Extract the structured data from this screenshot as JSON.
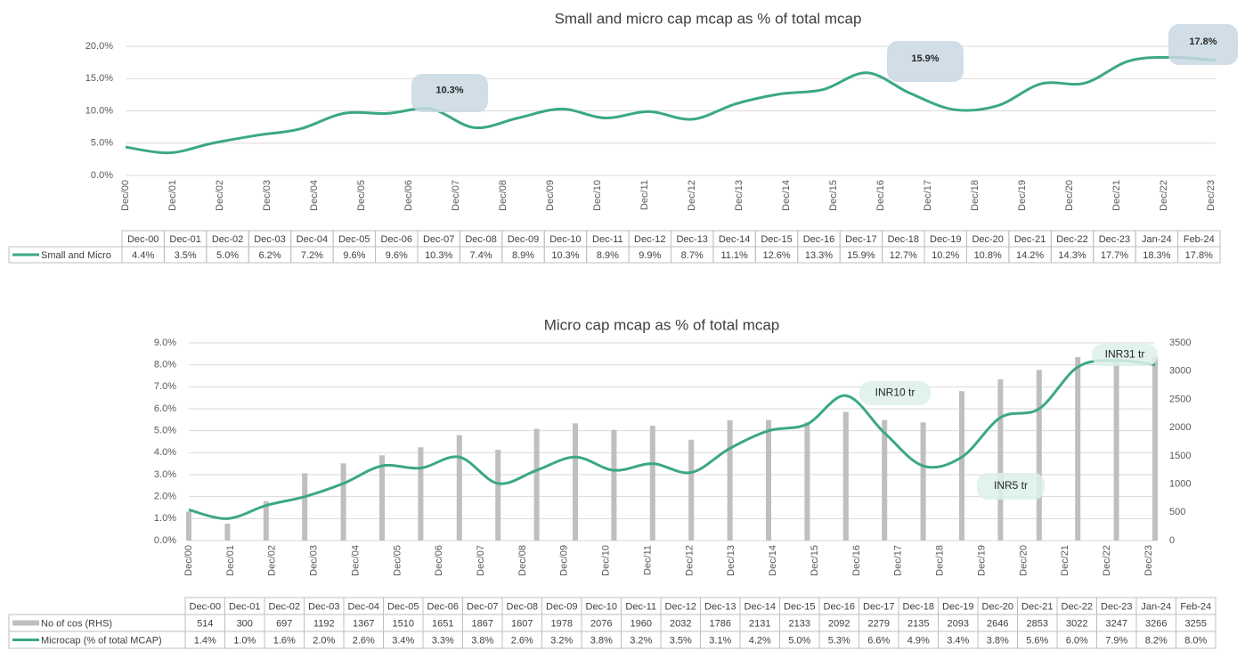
{
  "chart_data": [
    {
      "type": "line",
      "title": "Small and micro cap mcap as % of total mcap",
      "x_axis_labels": [
        "Dec/00",
        "Dec/01",
        "Dec/02",
        "Dec/03",
        "Dec/04",
        "Dec/05",
        "Dec/06",
        "Dec/07",
        "Dec/08",
        "Dec/09",
        "Dec/10",
        "Dec/11",
        "Dec/12",
        "Dec/13",
        "Dec/14",
        "Dec/15",
        "Dec/16",
        "Dec/17",
        "Dec/18",
        "Dec/19",
        "Dec/20",
        "Dec/21",
        "Dec/22",
        "Dec/23"
      ],
      "categories": [
        "Dec-00",
        "Dec-01",
        "Dec-02",
        "Dec-03",
        "Dec-04",
        "Dec-05",
        "Dec-06",
        "Dec-07",
        "Dec-08",
        "Dec-09",
        "Dec-10",
        "Dec-11",
        "Dec-12",
        "Dec-13",
        "Dec-14",
        "Dec-15",
        "Dec-16",
        "Dec-17",
        "Dec-18",
        "Dec-19",
        "Dec-20",
        "Dec-21",
        "Dec-22",
        "Dec-23",
        "Jan-24",
        "Feb-24"
      ],
      "series": [
        {
          "name": "Small and Micro",
          "color": "#3ba884",
          "values": [
            4.4,
            3.5,
            5.0,
            6.2,
            7.2,
            9.6,
            9.6,
            10.3,
            7.4,
            8.9,
            10.3,
            8.9,
            9.9,
            8.7,
            11.1,
            12.6,
            13.3,
            15.9,
            12.7,
            10.2,
            10.8,
            14.2,
            14.3,
            17.7,
            18.3,
            17.8
          ],
          "value_labels": [
            "4.4%",
            "3.5%",
            "5.0%",
            "6.2%",
            "7.2%",
            "9.6%",
            "9.6%",
            "10.3%",
            "7.4%",
            "8.9%",
            "10.3%",
            "8.9%",
            "9.9%",
            "8.7%",
            "11.1%",
            "12.6%",
            "13.3%",
            "15.9%",
            "12.7%",
            "10.2%",
            "10.8%",
            "14.2%",
            "14.3%",
            "17.7%",
            "18.3%",
            "17.8%"
          ]
        }
      ],
      "ylim": [
        0,
        20
      ],
      "yticks": [
        {
          "value": 0,
          "label": "0.0%"
        },
        {
          "value": 5,
          "label": "5.0%"
        },
        {
          "value": 10,
          "label": "10.0%"
        },
        {
          "value": 15,
          "label": "15.0%"
        },
        {
          "value": 20,
          "label": "20.0%"
        }
      ],
      "grid": true,
      "annotations": [
        "10.3%",
        "15.9%",
        "17.8%"
      ]
    },
    {
      "type": "bar-line",
      "title": "Micro cap mcap as % of total mcap",
      "x_axis_labels": [
        "Dec/00",
        "Dec/01",
        "Dec/02",
        "Dec/03",
        "Dec/04",
        "Dec/05",
        "Dec/06",
        "Dec/07",
        "Dec/08",
        "Dec/09",
        "Dec/10",
        "Dec/11",
        "Dec/12",
        "Dec/13",
        "Dec/14",
        "Dec/15",
        "Dec/16",
        "Dec/17",
        "Dec/18",
        "Dec/19",
        "Dec/20",
        "Dec/21",
        "Dec/22",
        "Dec/23"
      ],
      "categories": [
        "Dec-00",
        "Dec-01",
        "Dec-02",
        "Dec-03",
        "Dec-04",
        "Dec-05",
        "Dec-06",
        "Dec-07",
        "Dec-08",
        "Dec-09",
        "Dec-10",
        "Dec-11",
        "Dec-12",
        "Dec-13",
        "Dec-14",
        "Dec-15",
        "Dec-16",
        "Dec-17",
        "Dec-18",
        "Dec-19",
        "Dec-20",
        "Dec-21",
        "Dec-22",
        "Dec-23",
        "Jan-24",
        "Feb-24"
      ],
      "series": [
        {
          "name": "No of cos (RHS)",
          "color": "#bfbfbf",
          "axis": "y2",
          "type": "bar",
          "values": [
            514,
            300,
            697,
            1192,
            1367,
            1510,
            1651,
            1867,
            1607,
            1978,
            2076,
            1960,
            2032,
            1786,
            2131,
            2133,
            2092,
            2279,
            2135,
            2093,
            2646,
            2853,
            3022,
            3247,
            3266,
            3255
          ]
        },
        {
          "name": "Microcap (% of total MCAP)",
          "color": "#3ba884",
          "type": "line",
          "values": [
            1.4,
            1.0,
            1.6,
            2.0,
            2.6,
            3.4,
            3.3,
            3.8,
            2.6,
            3.2,
            3.8,
            3.2,
            3.5,
            3.1,
            4.2,
            5.0,
            5.3,
            6.6,
            4.9,
            3.4,
            3.8,
            5.6,
            6.0,
            7.9,
            8.2,
            8.0
          ],
          "value_labels": [
            "1.4%",
            "1.0%",
            "1.6%",
            "2.0%",
            "2.6%",
            "3.4%",
            "3.3%",
            "3.8%",
            "2.6%",
            "3.2%",
            "3.8%",
            "3.2%",
            "3.5%",
            "3.1%",
            "4.2%",
            "5.0%",
            "5.3%",
            "6.6%",
            "4.9%",
            "3.4%",
            "3.8%",
            "5.6%",
            "6.0%",
            "7.9%",
            "8.2%",
            "8.0%"
          ]
        }
      ],
      "ylim": [
        0,
        9
      ],
      "yticks": [
        {
          "value": 0,
          "label": "0.0%"
        },
        {
          "value": 1,
          "label": "1.0%"
        },
        {
          "value": 2,
          "label": "2.0%"
        },
        {
          "value": 3,
          "label": "3.0%"
        },
        {
          "value": 4,
          "label": "4.0%"
        },
        {
          "value": 5,
          "label": "5.0%"
        },
        {
          "value": 6,
          "label": "6.0%"
        },
        {
          "value": 7,
          "label": "7.0%"
        },
        {
          "value": 8,
          "label": "8.0%"
        },
        {
          "value": 9,
          "label": "9.0%"
        }
      ],
      "y2lim": [
        0,
        3500
      ],
      "y2ticks": [
        0,
        500,
        1000,
        1500,
        2000,
        2500,
        3000,
        3500
      ],
      "grid": true,
      "annotations": [
        "INR10 tr",
        "INR5 tr",
        "INR31 tr"
      ]
    }
  ]
}
